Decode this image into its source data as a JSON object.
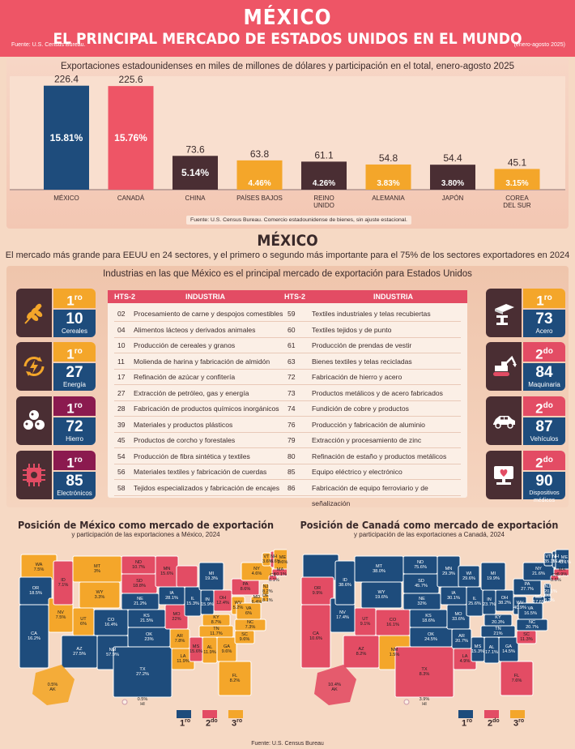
{
  "header": {
    "title": "MÉXICO",
    "subtitle": "EL PRINCIPAL MERCADO DE ESTADOS UNIDOS EN EL MUNDO",
    "source": "Fuente: U.S. Census Bureau.",
    "period": "(enero-agosto 2025)"
  },
  "colors": {
    "blue": "#1e4c7c",
    "red": "#e34c64",
    "orange": "#f4a62a",
    "dark": "#4a2e33",
    "plum": "#8b1a4f"
  },
  "chart_data": {
    "type": "bar",
    "title": "Exportaciones estadounidenses en miles de millones de dólares y participación en el total, enero-agosto 2025",
    "categories": [
      "MÉXICO",
      "CANADÁ",
      "CHINA",
      "PAÍSES BAJOS",
      "REINO UNIDO",
      "ALEMANIA",
      "JAPÓN",
      "COREA DEL SUR"
    ],
    "values": [
      226.4,
      225.6,
      73.6,
      63.8,
      61.1,
      54.8,
      54.4,
      45.1
    ],
    "value_labels": [
      "226.4",
      "225.6",
      "73.6",
      "63.8",
      "61.1",
      "54.8",
      "54.4",
      "45.1"
    ],
    "shares": [
      "15.81%",
      "15.76%",
      "5.14%",
      "4.46%",
      "4.26%",
      "3.83%",
      "3.80%",
      "3.15%"
    ],
    "bar_colors": [
      "#1e4c7c",
      "#ee5566",
      "#4a2e33",
      "#f4a62a",
      "#4a2e33",
      "#f4a62a",
      "#4a2e33",
      "#f4a62a"
    ],
    "ylim": [
      0,
      240
    ],
    "note": "Fuente: U.S. Census Bureau. Comercio estadounidense de bienes, sin ajuste estacional."
  },
  "section2": {
    "title": "MÉXICO",
    "text": "El mercado más grande para EEUU en 24 sectores, y el primero o segundo más importante para el 75% de los sectores exportadores en 2024",
    "panel_title": "Industrias en las que México es el principal mercado de exportación para Estados Unidos"
  },
  "cards": [
    {
      "rank": "1",
      "suffix": "ro",
      "value": "10",
      "label": "Cereales",
      "icon": "wheat-icon"
    },
    {
      "rank": "1",
      "suffix": "ro",
      "value": "27",
      "label": "Energía",
      "icon": "energy-icon"
    },
    {
      "rank": "1",
      "suffix": "ro",
      "value": "72",
      "label": "Hierro",
      "icon": "iron-ore-icon"
    },
    {
      "rank": "1",
      "suffix": "ro",
      "value": "85",
      "label": "Electrónicos",
      "icon": "chip-icon"
    },
    {
      "rank": "1",
      "suffix": "ro",
      "value": "73",
      "label": "Acero",
      "icon": "steel-beam-icon"
    },
    {
      "rank": "2",
      "suffix": "do",
      "value": "84",
      "label": "Maquinaria",
      "icon": "excavator-icon"
    },
    {
      "rank": "2",
      "suffix": "do",
      "value": "87",
      "label": "Vehículos",
      "icon": "car-icon"
    },
    {
      "rank": "2",
      "suffix": "do",
      "value": "90",
      "label": "Dispositivos médicos",
      "icon": "medical-monitor-icon"
    }
  ],
  "table": {
    "headers": [
      "HTS-2",
      "INDUSTRIA",
      "HTS-2",
      "INDUSTRIA"
    ],
    "rows": [
      [
        "02",
        "Procesamiento de carne y despojos comestibles",
        "59",
        "Textiles industriales y telas recubiertas"
      ],
      [
        "04",
        "Alimentos lácteos y derivados animales",
        "60",
        "Textiles tejidos y de punto"
      ],
      [
        "10",
        "Producción de cereales y granos",
        "61",
        "Producción de prendas de vestir"
      ],
      [
        "11",
        "Molienda de harina y fabricación de almidón",
        "63",
        "Bienes textiles y telas recicladas"
      ],
      [
        "17",
        "Refinación de azúcar y confitería",
        "72",
        "Fabricación de hierro y acero"
      ],
      [
        "27",
        "Extracción de petróleo, gas y energía",
        "73",
        "Productos metálicos y de acero fabricados"
      ],
      [
        "28",
        "Fabricación de productos químicos inorgánicos",
        "74",
        "Fundición de cobre y productos"
      ],
      [
        "39",
        "Materiales y productos plásticos",
        "76",
        "Producción y fabricación de aluminio"
      ],
      [
        "45",
        "Productos de corcho y forestales",
        "79",
        "Extracción y procesamiento de zinc"
      ],
      [
        "54",
        "Producción de fibra sintética y textiles",
        "80",
        "Refinación de estaño y productos metálicos"
      ],
      [
        "56",
        "Materiales textiles y fabricación de cuerdas",
        "85",
        "Equipo eléctrico y electrónico"
      ],
      [
        "58",
        "Tejidos especializados y fabricación de encajes",
        "86",
        "Fabricación de equipo ferroviario y de señalización"
      ]
    ]
  },
  "map_mx": {
    "title": "Posición de México como mercado de exportación",
    "subtitle": "y participación de las exportaciones a México, 2024",
    "labels": [
      "WA 7.5%",
      "OR 18.5%",
      "ID 7.1%",
      "MT 3%",
      "WY 3.3%",
      "ND 10.7%",
      "SD 18.8%",
      "MN 15.6%",
      "NE 21.2%",
      "IA 28.1%",
      "CA 16.2%",
      "NV 7.5%",
      "UT 6%",
      "CO 16.4%",
      "KS 21.5%",
      "MO 22%",
      "AZ 27.5%",
      "NM 57.9%",
      "OK 23%",
      "AR 7.8%",
      "TX 27.2%",
      "LA 11.9%",
      "MS 15.6%",
      "AL 11.9%",
      "GA 9.6%",
      "FL 8.2%",
      "IL 15.3%",
      "IN 15.9%",
      "MI 19.3%",
      "OH 12.4%",
      "KY 8.7%",
      "TN 11.7%",
      "WV 5.2%",
      "VA 6%",
      "NC 7.3%",
      "SC 9.6%",
      "PA 8.6%",
      "NY 4.6%",
      "ME 2.6%",
      "VT 3.6%",
      "NH 8.6%",
      "MA 10.1%",
      "CT 6.1%",
      "NJ 8.2%",
      "DE 8.1%",
      "MD 6.4%",
      "DC 0.3%",
      "AK 0.5%",
      "HI 0.5%"
    ],
    "legend": [
      "1",
      "2",
      "3"
    ]
  },
  "map_ca": {
    "title": "Posición de Canadá como mercado de exportación",
    "subtitle": "y participación de las exportaciones a Canadá, 2024",
    "labels": [
      "OR 9.9%",
      "ID 38.6%",
      "MT 38.0%",
      "WY 19.6%",
      "ND 75.6%",
      "SD 45.7%",
      "MN 29.3%",
      "NE 32%",
      "IA 30.1%",
      "NV 17.4%",
      "UT 9.1%",
      "CA 10.6%",
      "CO 16.1%",
      "KS 18.6%",
      "MO 33.6%",
      "AZ 8.2%",
      "NM 1.5%",
      "OK 24.5%",
      "TX 8.3%",
      "AR 20.7%",
      "LA 4.9%",
      "MS 15.3%",
      "AL 17.1%",
      "GA 14.5%",
      "FL 7.6%",
      "IL 25.6%",
      "IN 23.7%",
      "MI 19.9%",
      "OH 38.2%",
      "WI 29.6%",
      "KY 20.3%",
      "TN 21%",
      "WV 40.9%",
      "VA 16.5%",
      "NC 20.7%",
      "SC 11.3%",
      "PA 27.7%",
      "NY 21.6%",
      "ME 43.1%",
      "VT 35.3%",
      "NH 16.4%",
      "MA 8.9%",
      "CT 8.6%",
      "NJ 20.1%",
      "DE 8.2%",
      "MD 17.6%",
      "DC 0.3%",
      "AK 10.4%",
      "HI 3.9%"
    ],
    "legend": [
      "1",
      "2",
      "3"
    ]
  },
  "footer": "Fuente: U.S. Census Bureau"
}
